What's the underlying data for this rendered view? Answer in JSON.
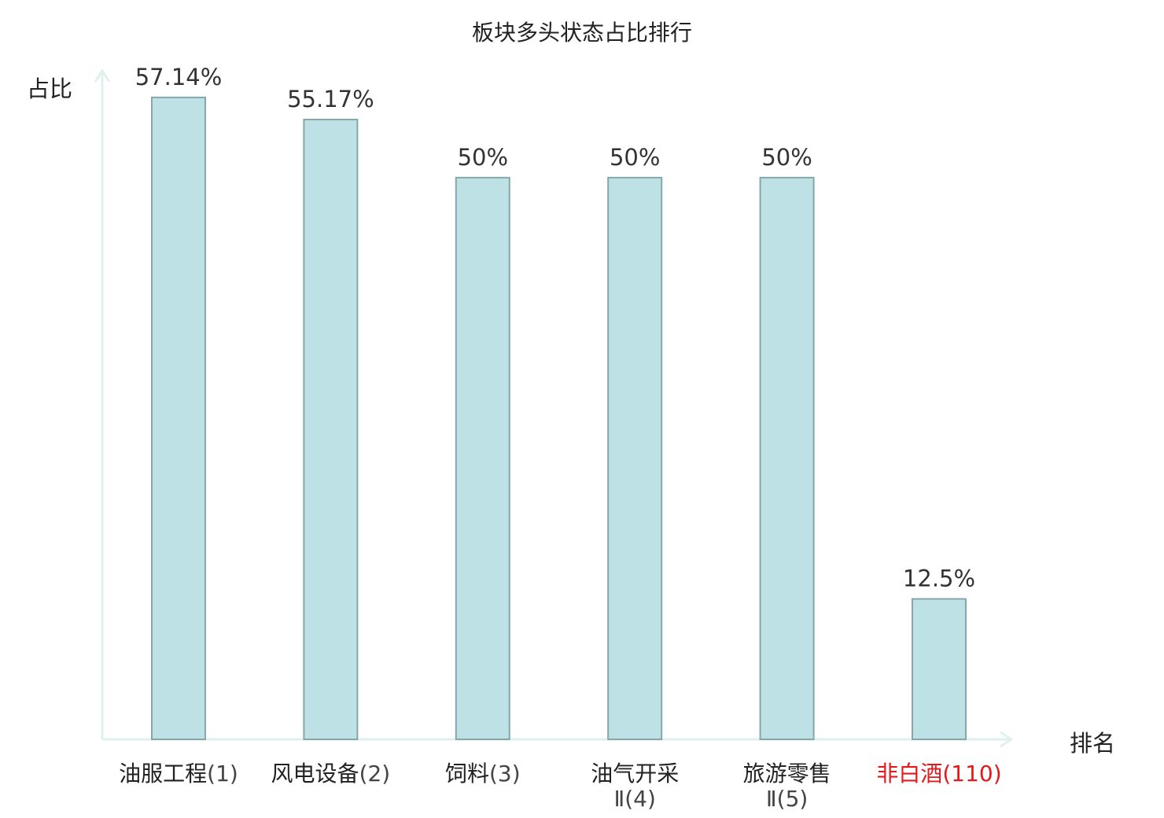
{
  "chart_data": {
    "type": "bar",
    "title": "板块多头状态占比排行",
    "xlabel": "排名",
    "ylabel": "占比",
    "ylim": [
      0,
      60
    ],
    "grid": false,
    "categories": [
      {
        "name": "油服工程",
        "rank": "(1)",
        "highlight": false
      },
      {
        "name": "风电设备",
        "rank": "(2)",
        "highlight": false
      },
      {
        "name": "饲料",
        "rank": "(3)",
        "highlight": false
      },
      {
        "name": "油气开采",
        "name_line2": "Ⅱ(4)",
        "rank": "",
        "highlight": false
      },
      {
        "name": "旅游零售",
        "name_line2": "Ⅱ(5)",
        "rank": "",
        "highlight": false
      },
      {
        "name": "非白酒",
        "rank": "(110)",
        "highlight": true
      }
    ],
    "values": [
      57.14,
      55.17,
      50,
      50,
      50,
      12.5
    ],
    "data_labels": [
      "57.14%",
      "55.17%",
      "50%",
      "50%",
      "50%",
      "12.5%"
    ]
  },
  "colors": {
    "bar_fill": "#bde1e4",
    "bar_stroke": "#86a7aa",
    "axis": "#dff1ef",
    "text": "#333333",
    "highlight": "#e31a1c"
  }
}
